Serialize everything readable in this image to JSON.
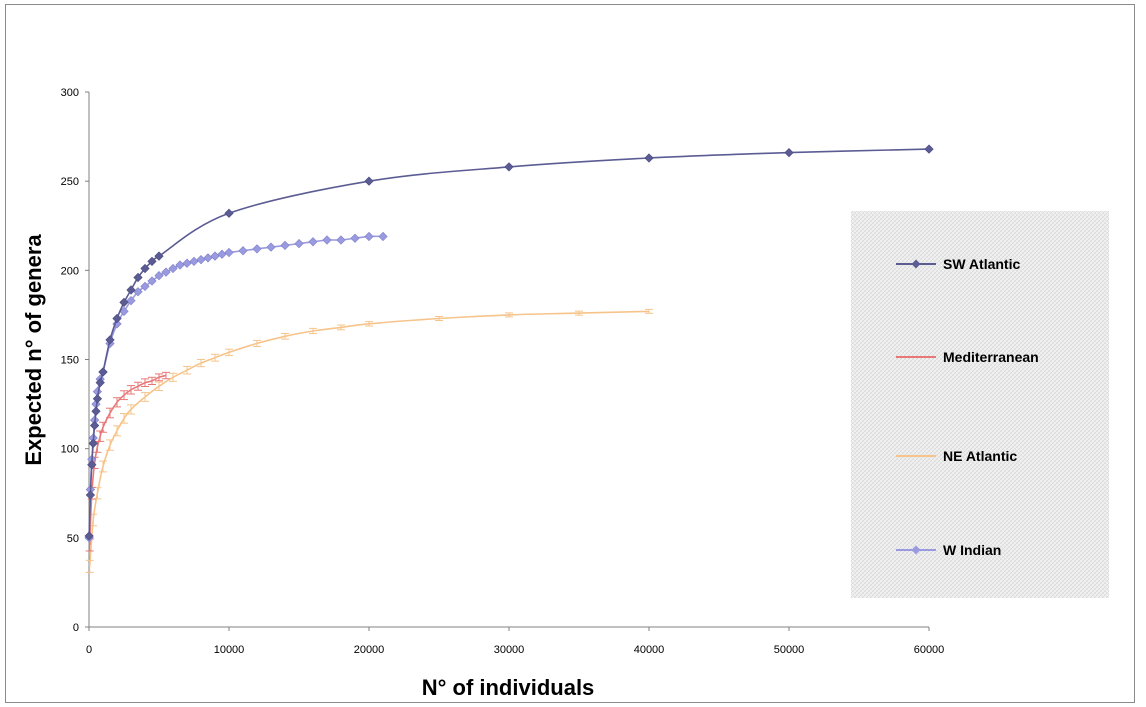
{
  "chart_data": {
    "type": "line",
    "xlabel": "N° of individuals",
    "ylabel": "Expected n° of genera",
    "xlim": [
      0,
      60000
    ],
    "ylim": [
      0,
      300
    ],
    "x_ticks": [
      "0",
      "10000",
      "20000",
      "30000",
      "40000",
      "50000",
      "60000"
    ],
    "y_ticks": [
      "0",
      "50",
      "100",
      "150",
      "200",
      "250",
      "300"
    ],
    "grid": false,
    "legend_placement": "right",
    "series": [
      {
        "name": "SW Atlantic",
        "color": "#5c5c94",
        "marker": "diamond",
        "x": [
          10,
          100,
          200,
          300,
          400,
          500,
          600,
          800,
          1000,
          1500,
          2000,
          2500,
          3000,
          3500,
          4000,
          4500,
          5000,
          10000,
          20000,
          30000,
          40000,
          50000,
          60000
        ],
        "y": [
          51,
          74,
          91,
          103,
          113,
          121,
          128,
          137,
          143,
          161,
          173,
          182,
          189,
          196,
          201,
          205,
          208,
          232,
          250,
          258,
          263,
          266,
          268
        ]
      },
      {
        "name": "Mediterranean",
        "color": "#e87878",
        "marker": "errorbar",
        "x": [
          50,
          200,
          400,
          600,
          800,
          1000,
          1500,
          2000,
          2500,
          3000,
          3500,
          4000,
          4500,
          5000,
          5500
        ],
        "y": [
          46,
          75,
          92,
          101,
          107,
          112,
          120,
          126,
          130,
          133,
          135,
          137,
          138,
          140,
          141
        ]
      },
      {
        "name": "NE Atlantic",
        "color": "#f6c48a",
        "marker": "errorbar",
        "x": [
          50,
          300,
          600,
          1000,
          1500,
          2000,
          2500,
          3000,
          4000,
          5000,
          6000,
          7000,
          8000,
          9000,
          10000,
          12000,
          14000,
          16000,
          18000,
          20000,
          25000,
          30000,
          35000,
          40000
        ],
        "y": [
          34,
          60,
          75,
          90,
          102,
          110,
          117,
          122,
          129,
          135,
          140,
          144,
          148,
          151,
          154,
          159,
          163,
          166,
          168,
          170,
          173,
          175,
          176,
          177
        ]
      },
      {
        "name": "W Indian",
        "color": "#9a9ae0",
        "marker": "diamond",
        "x": [
          10,
          100,
          200,
          300,
          400,
          500,
          600,
          800,
          1000,
          1500,
          2000,
          2500,
          3000,
          3500,
          4000,
          4500,
          5000,
          5500,
          6000,
          6500,
          7000,
          7500,
          8000,
          8500,
          9000,
          9500,
          10000,
          11000,
          12000,
          13000,
          14000,
          15000,
          16000,
          17000,
          18000,
          19000,
          20000,
          21000
        ],
        "y": [
          50,
          77,
          94,
          106,
          116,
          125,
          132,
          139,
          143,
          159,
          170,
          177,
          183,
          188,
          191,
          194,
          197,
          199,
          201,
          203,
          204,
          205,
          206,
          207,
          208,
          209,
          210,
          211,
          212,
          213,
          214,
          215,
          216,
          217,
          217,
          218,
          219,
          219
        ]
      }
    ]
  }
}
